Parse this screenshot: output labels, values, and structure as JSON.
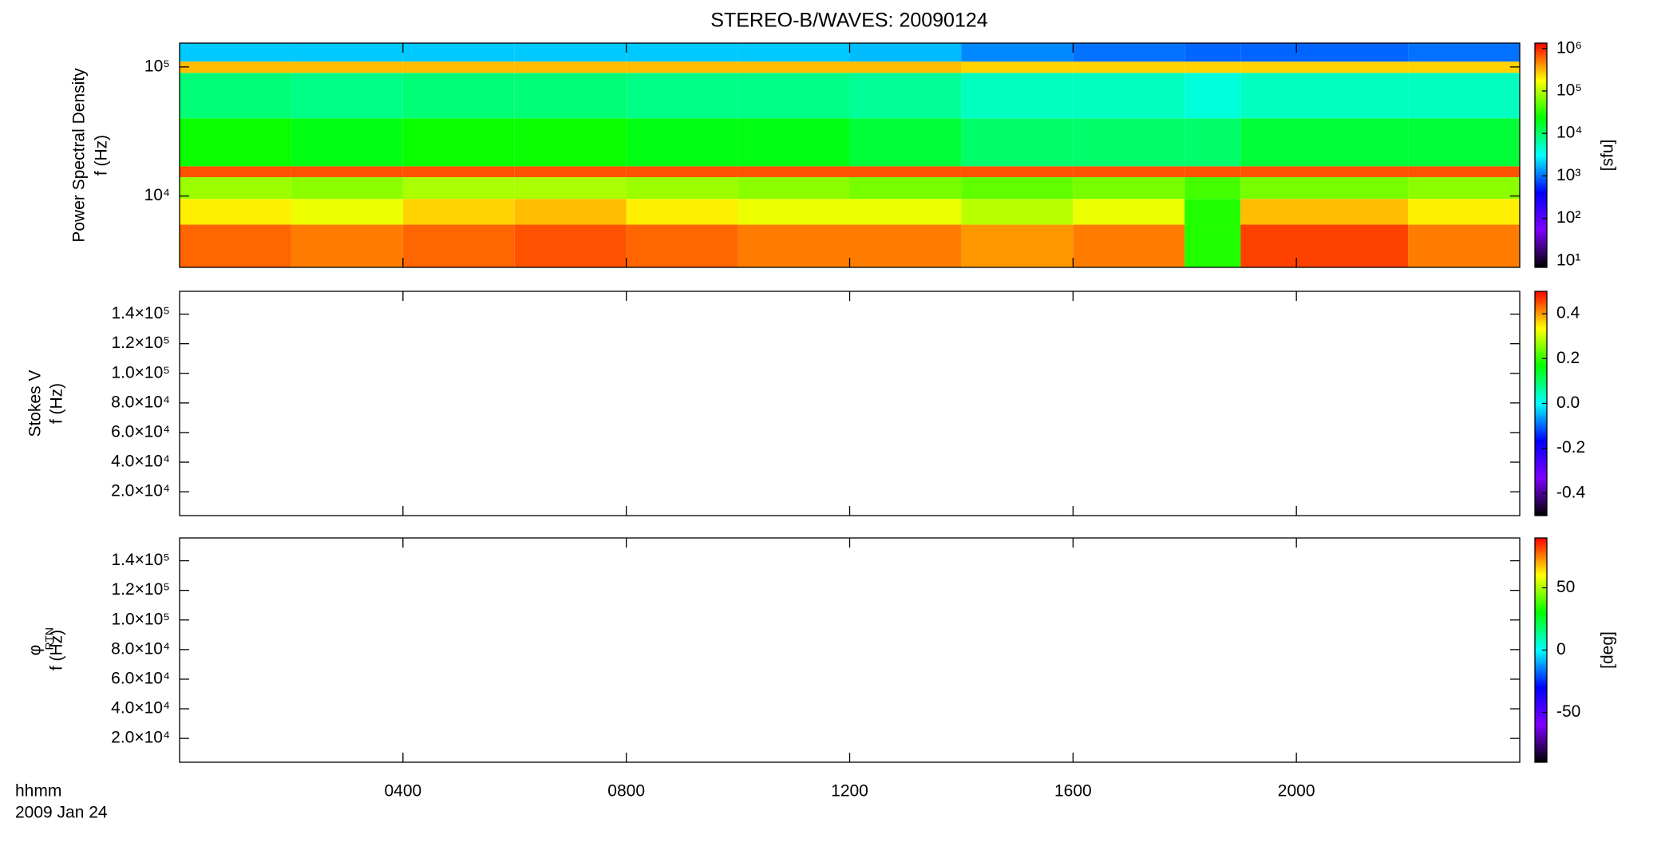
{
  "colormap": [
    "#000000",
    "#7f00ff",
    "#0000ff",
    "#00ffff",
    "#00ff00",
    "#ffff00",
    "#ff0000"
  ],
  "chart_data": [
    {
      "type": "heatmap",
      "title": "STEREO-B/WAVES: 20090124",
      "ylabel": "Power Spectral Density",
      "ylabel2": "f (Hz)",
      "xlim": [
        0,
        24
      ],
      "xticks": [
        4,
        8,
        12,
        16,
        20
      ],
      "ylog": true,
      "ylim": [
        2800,
        153000
      ],
      "yticks": [
        {
          "value": 10000,
          "label": "10⁴"
        },
        {
          "value": 100000,
          "label": "10⁵"
        }
      ],
      "clog": true,
      "clim": [
        7,
        1340000
      ],
      "clabel": "[sfu]",
      "cticks": [
        {
          "value": 10,
          "label": "10¹"
        },
        {
          "value": 100,
          "label": "10²"
        },
        {
          "value": 1000,
          "label": "10³"
        },
        {
          "value": 10000,
          "label": "10⁴"
        },
        {
          "value": 100000,
          "label": "10⁵"
        },
        {
          "value": 1000000,
          "label": "10⁶"
        }
      ],
      "x_bins": [
        0,
        2,
        4,
        6,
        8,
        10,
        12,
        14,
        16,
        18,
        19,
        22,
        24
      ],
      "y_bins": [
        2800,
        6000,
        9500,
        14000,
        17000,
        40000,
        90000,
        110000,
        153000
      ],
      "values": [
        [
          600000,
          500000,
          600000,
          700000,
          600000,
          500000,
          500000,
          400000,
          500000,
          30000,
          800000,
          500000
        ],
        [
          200000,
          150000,
          250000,
          300000,
          200000,
          150000,
          150000,
          100000,
          150000,
          30000,
          300000,
          200000
        ],
        [
          80000,
          70000,
          90000,
          90000,
          80000,
          70000,
          60000,
          50000,
          60000,
          40000,
          60000,
          70000
        ],
        [
          700000,
          700000,
          700000,
          700000,
          700000,
          700000,
          700000,
          700000,
          700000,
          700000,
          700000,
          700000
        ],
        [
          25000,
          20000,
          25000,
          25000,
          20000,
          20000,
          15000,
          10000,
          10000,
          10000,
          15000,
          15000
        ],
        [
          9000,
          8000,
          9000,
          9000,
          8000,
          8000,
          7000,
          5000,
          5000,
          4000,
          5000,
          5000
        ],
        [
          300000,
          300000,
          300000,
          300000,
          300000,
          300000,
          300000,
          250000,
          250000,
          250000,
          250000,
          250000
        ],
        [
          2000,
          2000,
          2000,
          2000,
          2000,
          2000,
          1800,
          1200,
          1000,
          900,
          900,
          1000
        ]
      ]
    },
    {
      "type": "heatmap",
      "ylabel": "Stokes V",
      "ylabel2": "f (Hz)",
      "xlim": [
        0,
        24
      ],
      "xticks": [
        4,
        8,
        12,
        16,
        20
      ],
      "ylog": false,
      "ylim": [
        3900,
        155400
      ],
      "yticks": [
        {
          "value": 20000,
          "label": "2.0×10⁴"
        },
        {
          "value": 40000,
          "label": "4.0×10⁴"
        },
        {
          "value": 60000,
          "label": "6.0×10⁴"
        },
        {
          "value": 80000,
          "label": "8.0×10⁴"
        },
        {
          "value": 100000,
          "label": "1.0×10⁵"
        },
        {
          "value": 120000,
          "label": "1.2×10⁵"
        },
        {
          "value": 140000,
          "label": "1.4×10⁵"
        }
      ],
      "clog": false,
      "clim": [
        -0.5,
        0.5
      ],
      "cticks": [
        -0.4,
        -0.2,
        {
          "value": 0,
          "label": "0.0"
        },
        0.2,
        0.4
      ],
      "values": []
    },
    {
      "type": "heatmap",
      "ylabel": "φ",
      "ylabel_sub": "RTN",
      "ylabel2": "f (Hz)",
      "ylog": false,
      "ylim": [
        3900,
        155400
      ],
      "yticks": [
        {
          "value": 20000,
          "label": "2.0×10⁴"
        },
        {
          "value": 40000,
          "label": "4.0×10⁴"
        },
        {
          "value": 60000,
          "label": "6.0×10⁴"
        },
        {
          "value": 80000,
          "label": "8.0×10⁴"
        },
        {
          "value": 100000,
          "label": "1.0×10⁵"
        },
        {
          "value": 120000,
          "label": "1.2×10⁵"
        },
        {
          "value": 140000,
          "label": "1.4×10⁵"
        }
      ],
      "clog": false,
      "clim": [
        -90,
        90
      ],
      "clabel": "[deg]",
      "cticks": [
        -50,
        0,
        50
      ],
      "xlim": [
        0,
        24
      ],
      "xlabel": "hhmm",
      "date": "2009 Jan 24",
      "xticks": [
        {
          "value": 4,
          "label": "0400"
        },
        {
          "value": 8,
          "label": "0800"
        },
        {
          "value": 12,
          "label": "1200"
        },
        {
          "value": 16,
          "label": "1600"
        },
        {
          "value": 20,
          "label": "2000"
        }
      ],
      "values": []
    }
  ]
}
